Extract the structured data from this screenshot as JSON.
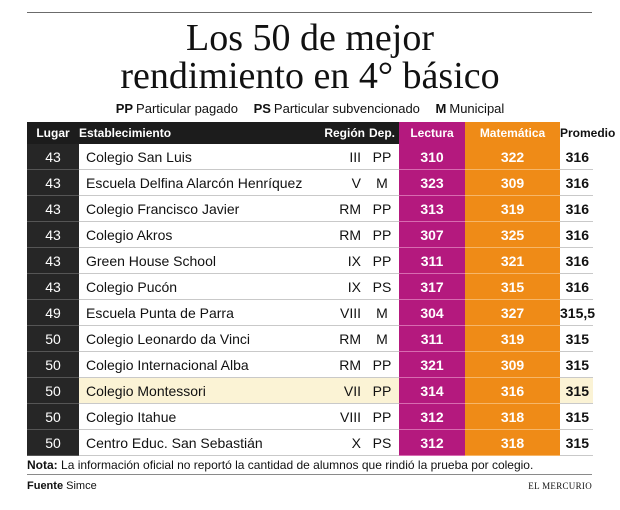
{
  "title": {
    "line1": "Los 50 de mejor",
    "line2": "rendimiento en 4° básico"
  },
  "legend": [
    {
      "code": "PP",
      "label": "Particular pagado"
    },
    {
      "code": "PS",
      "label": "Particular subvencionado"
    },
    {
      "code": "M",
      "label": "Municipal"
    }
  ],
  "headers": {
    "lugar": "Lugar",
    "establecimiento": "Establecimiento",
    "region": "Región",
    "dep": "Dep.",
    "lectura": "Lectura",
    "matematica": "Matemática",
    "promedio": "Promedio"
  },
  "rows": [
    {
      "lugar": "43",
      "establecimiento": "Colegio San Luis",
      "region": "III",
      "dep": "PP",
      "lectura": "310",
      "matematica": "322",
      "promedio": "316"
    },
    {
      "lugar": "43",
      "establecimiento": "Escuela Delfina Alarcón Henríquez",
      "region": "V",
      "dep": "M",
      "lectura": "323",
      "matematica": "309",
      "promedio": "316"
    },
    {
      "lugar": "43",
      "establecimiento": "Colegio Francisco Javier",
      "region": "RM",
      "dep": "PP",
      "lectura": "313",
      "matematica": "319",
      "promedio": "316"
    },
    {
      "lugar": "43",
      "establecimiento": "Colegio Akros",
      "region": "RM",
      "dep": "PP",
      "lectura": "307",
      "matematica": "325",
      "promedio": "316"
    },
    {
      "lugar": "43",
      "establecimiento": "Green House School",
      "region": "IX",
      "dep": "PP",
      "lectura": "311",
      "matematica": "321",
      "promedio": "316"
    },
    {
      "lugar": "43",
      "establecimiento": "Colegio Pucón",
      "region": "IX",
      "dep": "PS",
      "lectura": "317",
      "matematica": "315",
      "promedio": "316"
    },
    {
      "lugar": "49",
      "establecimiento": "Escuela Punta de Parra",
      "region": "VIII",
      "dep": "M",
      "lectura": "304",
      "matematica": "327",
      "promedio": "315,5"
    },
    {
      "lugar": "50",
      "establecimiento": "Colegio Leonardo da Vinci",
      "region": "RM",
      "dep": "M",
      "lectura": "311",
      "matematica": "319",
      "promedio": "315"
    },
    {
      "lugar": "50",
      "establecimiento": "Colegio Internacional Alba",
      "region": "RM",
      "dep": "PP",
      "lectura": "321",
      "matematica": "309",
      "promedio": "315"
    },
    {
      "lugar": "50",
      "establecimiento": "Colegio Montessori",
      "region": "VII",
      "dep": "PP",
      "lectura": "314",
      "matematica": "316",
      "promedio": "315"
    },
    {
      "lugar": "50",
      "establecimiento": "Colegio Itahue",
      "region": "VIII",
      "dep": "PP",
      "lectura": "312",
      "matematica": "318",
      "promedio": "315"
    },
    {
      "lugar": "50",
      "establecimiento": "Centro Educ. San Sebastián",
      "region": "X",
      "dep": "PS",
      "lectura": "312",
      "matematica": "318",
      "promedio": "315"
    }
  ],
  "highlight_row": 9,
  "note": {
    "label": "Nota:",
    "text": "La información oficial no reportó la cantidad de alumnos que rindió la prueba por colegio."
  },
  "source": {
    "label": "Fuente",
    "text": "Simce"
  },
  "brand": "EL MERCURIO",
  "colors": {
    "lectura": "#b4197e",
    "matematica": "#ef8b17",
    "dark": "#1c1c1c",
    "highlight": "#fbf3d5"
  }
}
